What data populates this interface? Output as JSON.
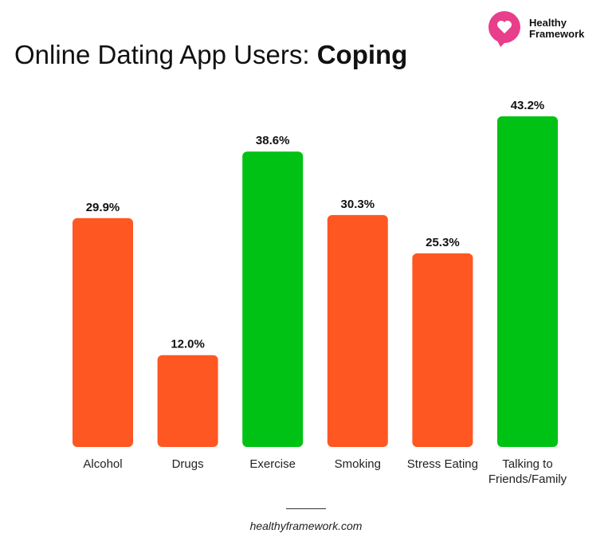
{
  "brand": {
    "name_line1": "Healthy",
    "name_line2": "Framework"
  },
  "source": "healthyframework.com",
  "chart_data": {
    "type": "bar",
    "title": "Online Dating App Users: ",
    "title_bold": "Coping",
    "categories": [
      "Alcohol",
      "Drugs",
      "Exercise",
      "Smoking",
      "Stress Eating",
      "Talking to\nFriends/Family"
    ],
    "values": [
      29.9,
      12.0,
      38.6,
      30.3,
      25.3,
      43.2
    ],
    "value_labels": [
      "29.9%",
      "12.0%",
      "38.6%",
      "30.3%",
      "25.3%",
      "43.2%"
    ],
    "bar_colors": [
      "#FF5722",
      "#FF5722",
      "#00C214",
      "#FF5722",
      "#FF5722",
      "#00C214"
    ],
    "ylim": [
      0,
      45
    ],
    "grid": false
  }
}
